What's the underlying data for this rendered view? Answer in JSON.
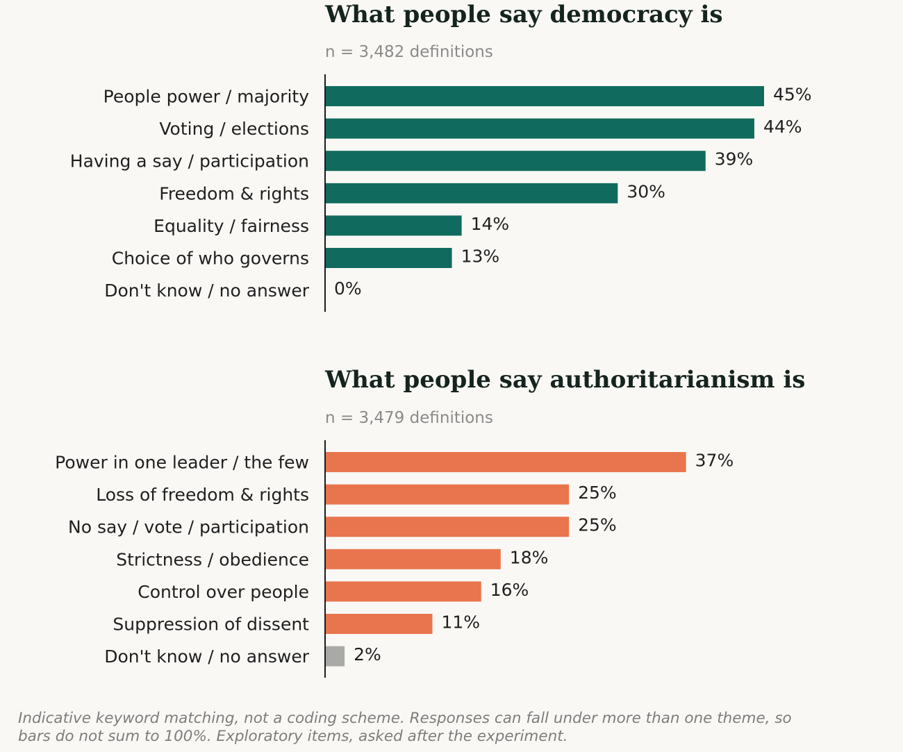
{
  "chart_data": [
    {
      "type": "bar",
      "orientation": "horizontal",
      "title": "What people say democracy is",
      "subtitle": "n = 3,482 definitions",
      "categories": [
        "People power / majority",
        "Voting / elections",
        "Having a say / participation",
        "Freedom & rights",
        "Equality / fairness",
        "Choice of who governs",
        "Don't know / no answer"
      ],
      "values": [
        45,
        44,
        39,
        30,
        14,
        13,
        0
      ],
      "value_labels": [
        "45%",
        "44%",
        "39%",
        "30%",
        "14%",
        "13%",
        "0%"
      ],
      "bar_colors": [
        "#106b5e",
        "#106b5e",
        "#106b5e",
        "#106b5e",
        "#106b5e",
        "#106b5e",
        "#106b5e"
      ],
      "xlim": [
        0,
        45
      ],
      "grid": false,
      "legend": "none"
    },
    {
      "type": "bar",
      "orientation": "horizontal",
      "title": "What people say authoritarianism is",
      "subtitle": "n = 3,479 definitions",
      "categories": [
        "Power in one leader / the few",
        "Loss of freedom & rights",
        "No say / vote / participation",
        "Strictness / obedience",
        "Control over people",
        "Suppression of dissent",
        "Don't know / no answer"
      ],
      "values": [
        37,
        25,
        25,
        18,
        16,
        11,
        2
      ],
      "value_labels": [
        "37%",
        "25%",
        "25%",
        "18%",
        "16%",
        "11%",
        "2%"
      ],
      "bar_colors": [
        "#e8754d",
        "#e8754d",
        "#e8754d",
        "#e8754d",
        "#e8754d",
        "#e8754d",
        "#a9aaa7"
      ],
      "xlim": [
        0,
        45
      ],
      "grid": false,
      "legend": "none"
    }
  ],
  "footnote": "Indicative keyword matching, not a coding scheme. Responses can fall under more than one theme, so bars do not sum to 100%. Exploratory items, asked after the experiment."
}
